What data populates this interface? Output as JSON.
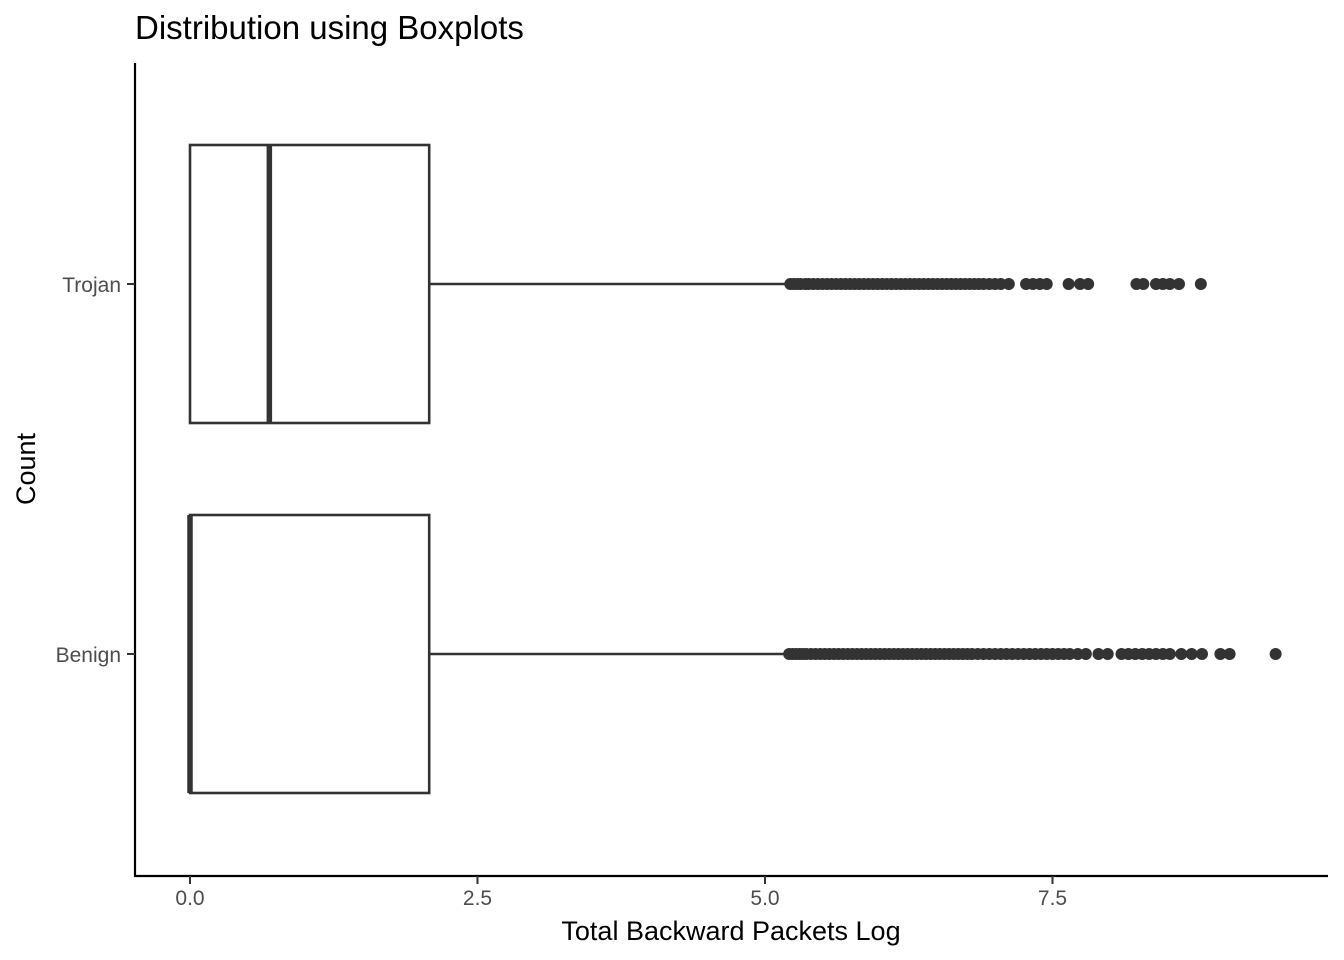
{
  "chart_data": {
    "type": "boxplot",
    "orientation": "horizontal",
    "title": "Distribution using Boxplots",
    "xlabel": "Total Backward Packets Log",
    "ylabel": "Count",
    "xlim": [
      -0.47,
      9.8
    ],
    "x_ticks": [
      {
        "value": 0,
        "label": "0.0"
      },
      {
        "value": 2.5,
        "label": "2.5"
      },
      {
        "value": 5,
        "label": "5.0"
      },
      {
        "value": 7.5,
        "label": "7.5"
      }
    ],
    "categories": [
      "Trojan",
      "Benign"
    ],
    "grid": false,
    "legend": "none",
    "series": [
      {
        "category": "Trojan",
        "min": 0,
        "q1": 0,
        "median": 0.69,
        "q3": 2.08,
        "whisker_high": 5.2,
        "outliers": [
          5.22,
          5.25,
          5.28,
          5.31,
          5.35,
          5.38,
          5.42,
          5.46,
          5.5,
          5.54,
          5.58,
          5.62,
          5.66,
          5.7,
          5.74,
          5.78,
          5.82,
          5.86,
          5.9,
          5.94,
          5.98,
          6.02,
          6.06,
          6.1,
          6.14,
          6.18,
          6.22,
          6.26,
          6.3,
          6.34,
          6.38,
          6.42,
          6.46,
          6.5,
          6.54,
          6.58,
          6.62,
          6.66,
          6.7,
          6.74,
          6.78,
          6.82,
          6.86,
          6.9,
          6.95,
          7.0,
          7.05,
          7.12,
          7.27,
          7.33,
          7.39,
          7.45,
          7.64,
          7.74,
          7.81,
          8.23,
          8.29,
          8.4,
          8.46,
          8.52,
          8.6,
          8.79
        ]
      },
      {
        "category": "Benign",
        "min": 0,
        "q1": 0,
        "median": 0,
        "q3": 2.08,
        "whisker_high": 5.2,
        "outliers": [
          5.21,
          5.24,
          5.27,
          5.3,
          5.33,
          5.36,
          5.4,
          5.44,
          5.48,
          5.52,
          5.56,
          5.6,
          5.64,
          5.68,
          5.72,
          5.76,
          5.8,
          5.84,
          5.88,
          5.92,
          5.96,
          6.0,
          6.04,
          6.08,
          6.12,
          6.16,
          6.2,
          6.24,
          6.28,
          6.32,
          6.36,
          6.4,
          6.44,
          6.48,
          6.52,
          6.56,
          6.6,
          6.64,
          6.68,
          6.72,
          6.76,
          6.8,
          6.85,
          6.9,
          6.95,
          7.0,
          7.05,
          7.1,
          7.15,
          7.2,
          7.25,
          7.3,
          7.35,
          7.4,
          7.45,
          7.5,
          7.55,
          7.6,
          7.65,
          7.72,
          7.79,
          7.9,
          7.98,
          8.1,
          8.16,
          8.22,
          8.28,
          8.34,
          8.4,
          8.46,
          8.52,
          8.62,
          8.71,
          8.8,
          8.96,
          9.04,
          9.44
        ]
      }
    ]
  }
}
